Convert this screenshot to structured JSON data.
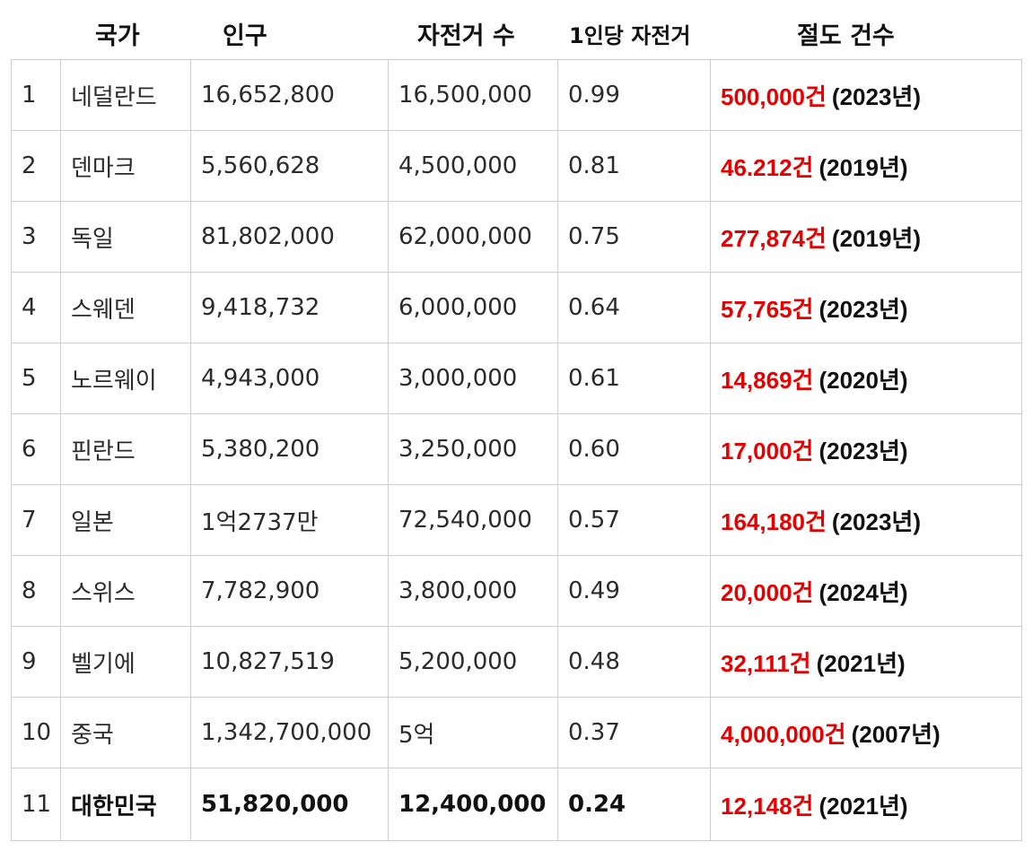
{
  "headers": {
    "country": "국가",
    "population": "인구",
    "bicycles": "자전거 수",
    "per_capita": "1인당 자전거",
    "thefts": "절도 건수"
  },
  "rows": [
    {
      "rank": "1",
      "country": "네덜란드",
      "population": "16,652,800",
      "bicycles": "16,500,000",
      "per_capita": "0.99",
      "thefts": "500,000건",
      "year": "(2023년)"
    },
    {
      "rank": "2",
      "country": "덴마크",
      "population": "5,560,628",
      "bicycles": "4,500,000",
      "per_capita": "0.81",
      "thefts": "46.212건",
      "year": "(2019년)"
    },
    {
      "rank": "3",
      "country": "독일",
      "population": "81,802,000",
      "bicycles": "62,000,000",
      "per_capita": "0.75",
      "thefts": "277,874건",
      "year": "(2019년)"
    },
    {
      "rank": "4",
      "country": "스웨덴",
      "population": "9,418,732",
      "bicycles": "6,000,000",
      "per_capita": "0.64",
      "thefts": "57,765건",
      "year": "(2023년)"
    },
    {
      "rank": "5",
      "country": "노르웨이",
      "population": "4,943,000",
      "bicycles": "3,000,000",
      "per_capita": "0.61",
      "thefts": "14,869건",
      "year": "(2020년)"
    },
    {
      "rank": "6",
      "country": "핀란드",
      "population": "5,380,200",
      "bicycles": "3,250,000",
      "per_capita": "0.60",
      "thefts": "17,000건",
      "year": "(2023년)"
    },
    {
      "rank": "7",
      "country": "일본",
      "population": "1억2737만",
      "bicycles": "72,540,000",
      "per_capita": "0.57",
      "thefts": "164,180건",
      "year": "(2023년)"
    },
    {
      "rank": "8",
      "country": "스위스",
      "population": "7,782,900",
      "bicycles": "3,800,000",
      "per_capita": "0.49",
      "thefts": "20,000건",
      "year": "(2024년)"
    },
    {
      "rank": "9",
      "country": "벨기에",
      "population": "10,827,519",
      "bicycles": "5,200,000",
      "per_capita": "0.48",
      "thefts": "32,111건",
      "year": "(2021년)"
    },
    {
      "rank": "10",
      "country": "중국",
      "population": "1,342,700,000",
      "bicycles": "5억",
      "per_capita": "0.37",
      "thefts": "4,000,000건",
      "year": "(2007년)"
    },
    {
      "rank": "11",
      "country": "대한민국",
      "population": "51,820,000",
      "bicycles": "12,400,000",
      "per_capita": "0.24",
      "thefts": "12,148건",
      "year": "(2021년)"
    }
  ],
  "colors": {
    "theft_highlight": "#e80000",
    "grid_line": "#cfcfcf"
  }
}
